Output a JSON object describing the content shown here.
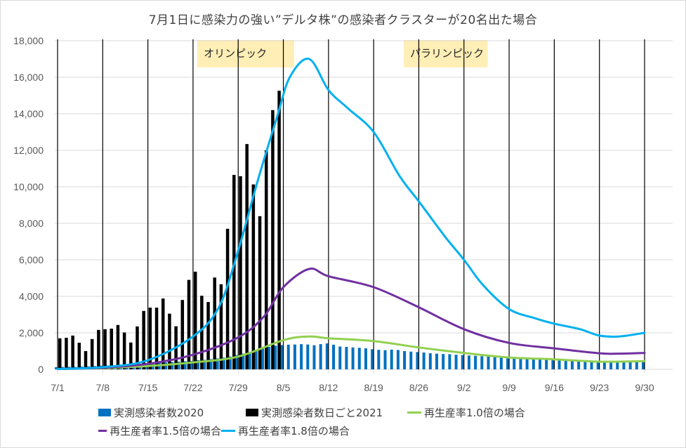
{
  "chart_data": {
    "type": "bar+line",
    "title": "7月1日に感染力の強い”デルタ株”の感染者クラスターが20名出た場合",
    "xlabel": "",
    "ylabel": "",
    "ylim": [
      0,
      18000
    ],
    "yticks": [
      "0",
      "2,000",
      "4,000",
      "6,000",
      "8,000",
      "10,000",
      "12,000",
      "14,000",
      "16,000",
      "18,000"
    ],
    "ytick_values": [
      0,
      2000,
      4000,
      6000,
      8000,
      10000,
      12000,
      14000,
      16000,
      18000
    ],
    "x_start": "7/1",
    "x_end": "9/30",
    "num_days": 92,
    "xticks": [
      "7/1",
      "7/8",
      "7/15",
      "7/22",
      "7/29",
      "8/5",
      "8/12",
      "8/19",
      "8/26",
      "9/2",
      "9/9",
      "9/16",
      "9/23",
      "9/30"
    ],
    "xtick_day_index": [
      0,
      7,
      14,
      21,
      28,
      35,
      42,
      49,
      56,
      63,
      70,
      77,
      84,
      91
    ],
    "grid": "horizontal-gray, vertical-black-weekly",
    "legend_position": "bottom",
    "annotations": [
      {
        "text": "オリンピック",
        "from_day": 22,
        "to_day": 37,
        "color": "#ffeeb5"
      },
      {
        "text": "パラリンピック",
        "from_day": 54,
        "to_day": 67,
        "color": "#ffeeb5"
      }
    ],
    "series": [
      {
        "name": "実測感染者数2020",
        "kind": "bar",
        "color": "#0070c0",
        "values": [
          120,
          130,
          140,
          130,
          150,
          160,
          180,
          200,
          210,
          230,
          240,
          260,
          280,
          300,
          320,
          340,
          360,
          380,
          400,
          420,
          440,
          460,
          500,
          520,
          560,
          600,
          640,
          700,
          780,
          860,
          960,
          1050,
          1150,
          1230,
          1300,
          1330,
          1350,
          1360,
          1380,
          1360,
          1320,
          1380,
          1420,
          1350,
          1250,
          1230,
          1200,
          1180,
          1150,
          1100,
          1070,
          1050,
          1080,
          1060,
          1000,
          970,
          950,
          920,
          880,
          860,
          840,
          830,
          800,
          780,
          760,
          740,
          720,
          700,
          680,
          660,
          640,
          620,
          600,
          590,
          580,
          560,
          540,
          530,
          520,
          510,
          500,
          490,
          480,
          470,
          460,
          450,
          440,
          430,
          420,
          410,
          400,
          400
        ]
      },
      {
        "name": "実測感染者数日ごと2021",
        "kind": "bar",
        "color": "#000000",
        "values": [
          1700,
          1730,
          1850,
          1460,
          1000,
          1660,
          2160,
          2200,
          2230,
          2430,
          2020,
          1470,
          2350,
          3200,
          3380,
          3380,
          3880,
          3050,
          2360,
          3800,
          4900,
          5350,
          4030,
          3690,
          5030,
          4660,
          7700,
          10650,
          10580,
          12340,
          10130,
          8390,
          12000,
          14200,
          15260
        ]
      },
      {
        "name": "再生産率1.0倍の場合",
        "kind": "line",
        "color": "#92d050",
        "points": [
          [
            0,
            20
          ],
          [
            7,
            70
          ],
          [
            14,
            180
          ],
          [
            21,
            380
          ],
          [
            28,
            700
          ],
          [
            35,
            1600
          ],
          [
            39,
            1800
          ],
          [
            42,
            1700
          ],
          [
            49,
            1550
          ],
          [
            56,
            1200
          ],
          [
            63,
            900
          ],
          [
            70,
            650
          ],
          [
            77,
            550
          ],
          [
            84,
            420
          ],
          [
            91,
            450
          ]
        ]
      },
      {
        "name": "再生産者率1.5倍の場合",
        "kind": "line",
        "color": "#7030a0",
        "points": [
          [
            0,
            20
          ],
          [
            7,
            90
          ],
          [
            14,
            300
          ],
          [
            21,
            800
          ],
          [
            28,
            1750
          ],
          [
            32,
            2900
          ],
          [
            35,
            4500
          ],
          [
            39,
            5500
          ],
          [
            42,
            5100
          ],
          [
            49,
            4500
          ],
          [
            56,
            3400
          ],
          [
            63,
            2200
          ],
          [
            70,
            1450
          ],
          [
            77,
            1150
          ],
          [
            84,
            880
          ],
          [
            87,
            860
          ],
          [
            91,
            900
          ]
        ]
      },
      {
        "name": "再生産者率1.8倍の場合",
        "kind": "line",
        "color": "#00b0f0",
        "points": [
          [
            0,
            20
          ],
          [
            7,
            120
          ],
          [
            14,
            500
          ],
          [
            21,
            1800
          ],
          [
            25,
            3400
          ],
          [
            28,
            6500
          ],
          [
            31,
            10300
          ],
          [
            34,
            13800
          ],
          [
            36,
            16000
          ],
          [
            39,
            17000
          ],
          [
            42,
            15300
          ],
          [
            45,
            14300
          ],
          [
            49,
            13000
          ],
          [
            53,
            10600
          ],
          [
            56,
            9200
          ],
          [
            60,
            7300
          ],
          [
            63,
            6000
          ],
          [
            66,
            4600
          ],
          [
            70,
            3300
          ],
          [
            74,
            2800
          ],
          [
            77,
            2500
          ],
          [
            81,
            2200
          ],
          [
            84,
            1850
          ],
          [
            87,
            1800
          ],
          [
            91,
            2000
          ]
        ]
      }
    ]
  }
}
